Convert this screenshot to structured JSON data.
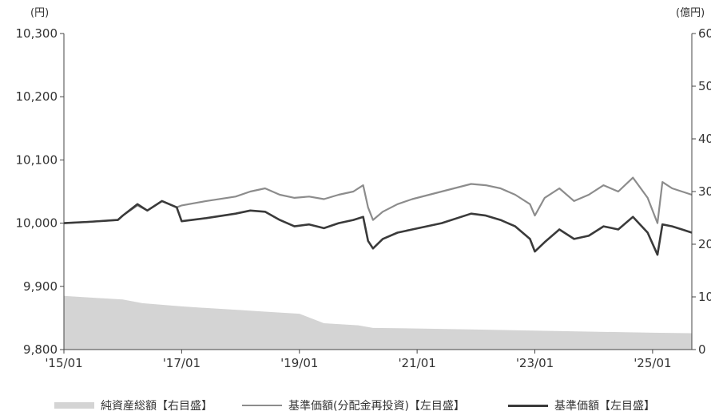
{
  "chart_data": {
    "type": "line",
    "left_axis": {
      "unit_label": "(円)",
      "ylim": [
        9800,
        10300
      ],
      "ticks": [
        9800,
        9900,
        10000,
        10100,
        10200,
        10300
      ],
      "tick_labels": [
        "9,800",
        "9,900",
        "10,000",
        "10,100",
        "10,200",
        "10,300"
      ]
    },
    "right_axis": {
      "unit_label": "(億円)",
      "ylim": [
        0,
        60
      ],
      "ticks": [
        0,
        10,
        20,
        30,
        40,
        50,
        60
      ],
      "tick_labels": [
        "0",
        "10",
        "20",
        "30",
        "40",
        "50",
        "60"
      ]
    },
    "x_axis": {
      "start": "2015-01",
      "end": "2025-09",
      "ticks": [
        "2015-01",
        "2017-01",
        "2019-01",
        "2021-01",
        "2023-01",
        "2025-01"
      ],
      "tick_labels": [
        "'15/01",
        "'17/01",
        "'19/01",
        "'21/01",
        "'23/01",
        "'25/01"
      ]
    },
    "series": [
      {
        "name": "純資産総額【右目盛】",
        "type": "area",
        "axis": "right",
        "color": "#d4d4d4",
        "x": [
          "2015-01",
          "2016-01",
          "2016-05",
          "2017-01",
          "2017-06",
          "2018-01",
          "2018-06",
          "2019-01",
          "2019-06",
          "2020-01",
          "2020-04",
          "2021-01",
          "2022-01",
          "2023-01",
          "2024-01",
          "2025-01",
          "2025-09"
        ],
        "values": [
          10.2,
          9.5,
          8.8,
          8.2,
          7.9,
          7.5,
          7.2,
          6.8,
          5.0,
          4.6,
          4.1,
          4.0,
          3.8,
          3.6,
          3.4,
          3.2,
          3.1
        ]
      },
      {
        "name": "基準価額(分配金再投資)【左目盛】",
        "type": "line",
        "axis": "left",
        "color": "#8c8c8c",
        "x": [
          "2015-01",
          "2015-06",
          "2015-12",
          "2016-01",
          "2016-04",
          "2016-06",
          "2016-09",
          "2016-12",
          "2017-01",
          "2017-06",
          "2017-12",
          "2018-03",
          "2018-06",
          "2018-09",
          "2018-12",
          "2019-03",
          "2019-06",
          "2019-09",
          "2019-12",
          "2020-02",
          "2020-03",
          "2020-04",
          "2020-06",
          "2020-09",
          "2020-12",
          "2021-06",
          "2021-12",
          "2022-03",
          "2022-06",
          "2022-09",
          "2022-12",
          "2023-01",
          "2023-03",
          "2023-06",
          "2023-09",
          "2023-12",
          "2024-03",
          "2024-06",
          "2024-09",
          "2024-12",
          "2025-02",
          "2025-03",
          "2025-05",
          "2025-07",
          "2025-09"
        ],
        "values": [
          10000,
          10002,
          10005,
          10012,
          10028,
          10020,
          10035,
          10025,
          10028,
          10035,
          10042,
          10050,
          10055,
          10045,
          10040,
          10042,
          10038,
          10045,
          10050,
          10060,
          10025,
          10005,
          10018,
          10030,
          10038,
          10050,
          10062,
          10060,
          10055,
          10045,
          10030,
          10012,
          10040,
          10055,
          10035,
          10045,
          10060,
          10050,
          10072,
          10040,
          10000,
          10065,
          10055,
          10050,
          10045
        ]
      },
      {
        "name": "基準価額【左目盛】",
        "type": "line",
        "axis": "left",
        "color": "#3a3a3a",
        "x": [
          "2015-01",
          "2015-06",
          "2015-12",
          "2016-01",
          "2016-04",
          "2016-06",
          "2016-09",
          "2016-12",
          "2017-01",
          "2017-06",
          "2017-12",
          "2018-03",
          "2018-06",
          "2018-09",
          "2018-12",
          "2019-03",
          "2019-06",
          "2019-09",
          "2019-12",
          "2020-02",
          "2020-03",
          "2020-04",
          "2020-06",
          "2020-09",
          "2020-12",
          "2021-06",
          "2021-12",
          "2022-03",
          "2022-06",
          "2022-09",
          "2022-12",
          "2023-01",
          "2023-03",
          "2023-06",
          "2023-09",
          "2023-12",
          "2024-03",
          "2024-06",
          "2024-09",
          "2024-12",
          "2025-02",
          "2025-03",
          "2025-05",
          "2025-07",
          "2025-09"
        ],
        "values": [
          10000,
          10002,
          10005,
          10012,
          10030,
          10020,
          10035,
          10025,
          10003,
          10008,
          10015,
          10020,
          10018,
          10005,
          9995,
          9998,
          9992,
          10000,
          10005,
          10010,
          9972,
          9960,
          9975,
          9985,
          9990,
          10000,
          10015,
          10012,
          10005,
          9995,
          9975,
          9955,
          9970,
          9990,
          9975,
          9980,
          9995,
          9990,
          10010,
          9985,
          9950,
          9998,
          9995,
          9990,
          9985
        ]
      }
    ],
    "grid": false,
    "legend_position": "bottom"
  }
}
